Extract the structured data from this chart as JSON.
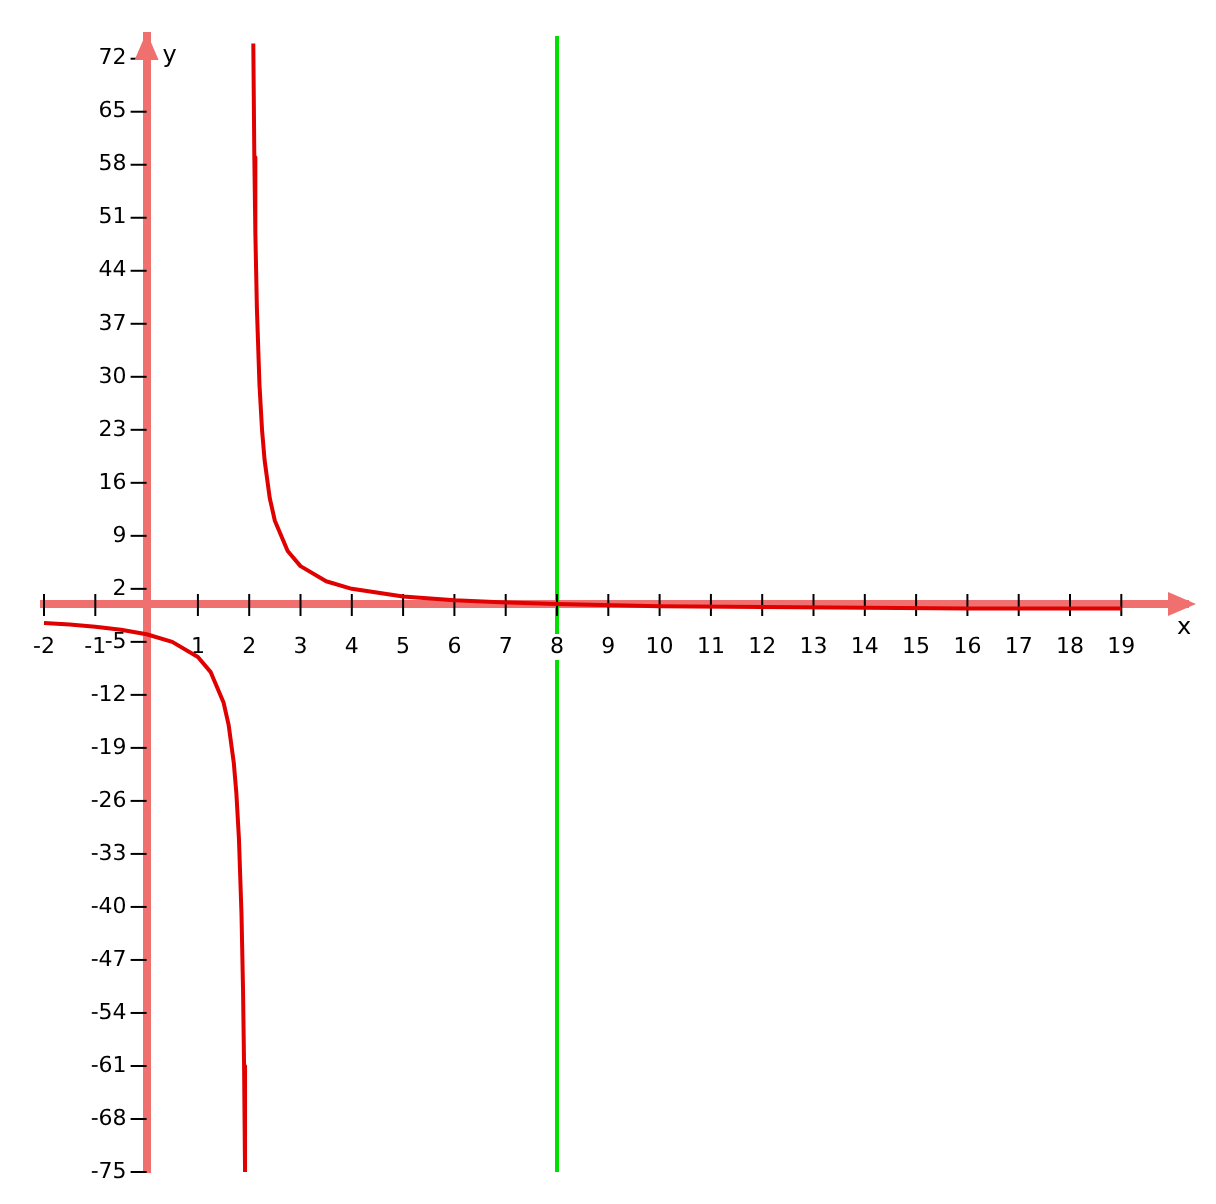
{
  "chart_data": {
    "type": "line",
    "xlabel": "x",
    "ylabel": "y",
    "xlim": [
      -2,
      20.3
    ],
    "ylim": [
      -75,
      75
    ],
    "xticks": [
      -2,
      -1,
      1,
      2,
      3,
      4,
      5,
      6,
      7,
      8,
      9,
      10,
      11,
      12,
      13,
      14,
      15,
      16,
      17,
      18,
      19
    ],
    "yticks": [
      -75,
      -68,
      -61,
      -54,
      -47,
      -40,
      -33,
      -26,
      -19,
      -12,
      -5,
      2,
      9,
      16,
      23,
      30,
      37,
      44,
      51,
      58,
      65,
      72
    ],
    "grid": false,
    "legend": false,
    "marker": "none",
    "line_style": "solid",
    "series": [
      {
        "color": "#e00000",
        "x": [
          -2,
          -1.5,
          -1,
          -0.5,
          0,
          0.5,
          1,
          1.25,
          1.5,
          1.6,
          1.7,
          1.75,
          1.8,
          1.85,
          1.88,
          1.9,
          1.919,
          2,
          2.08,
          2.1,
          2.12,
          2.15,
          2.2,
          2.25,
          2.3,
          2.4,
          2.5,
          2.75,
          3,
          3.5,
          4,
          5,
          6,
          7,
          8,
          10,
          12,
          14,
          16,
          18,
          19
        ],
        "values": [
          -2.5,
          -2.7,
          -3,
          -3.4,
          -4,
          -5,
          -7,
          -9,
          -13,
          -16,
          -21,
          -25,
          -31,
          -41,
          -51,
          -61,
          -75,
          null,
          74,
          59,
          49,
          39,
          29,
          23,
          19,
          14,
          11,
          7,
          5,
          3,
          2,
          1,
          0.5,
          0.2,
          0,
          -0.3,
          -0.4,
          -0.5,
          -0.6,
          -0.6,
          -0.6
        ]
      }
    ],
    "ref_lines": [
      {
        "axis": "x",
        "value": 8,
        "color": "#00e000"
      }
    ]
  }
}
